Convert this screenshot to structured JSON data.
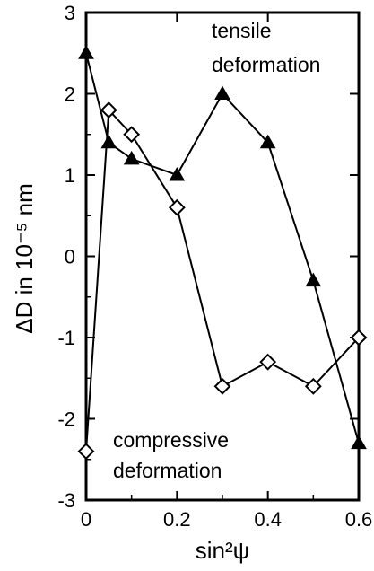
{
  "chart_data": {
    "type": "line",
    "xlabel": "sin²ψ",
    "ylabel": "ΔD in 10⁻⁵ nm",
    "xlim": [
      0,
      0.6
    ],
    "ylim": [
      -3,
      3
    ],
    "x_ticks": [
      "0",
      "0.2",
      "0.4",
      "0.6"
    ],
    "y_ticks": [
      "3",
      "2",
      "1",
      "0",
      "-1",
      "-2",
      "-3"
    ],
    "grid": false,
    "annotations": {
      "tensile_line1": "tensile",
      "tensile_line2": "deformation",
      "compressive_line1": "compressive",
      "compressive_line2": "deformation"
    },
    "series": [
      {
        "marker": "filled-triangle",
        "color": "#000000",
        "x": [
          0,
          0.05,
          0.1,
          0.2,
          0.3,
          0.4,
          0.5,
          0.6
        ],
        "y": [
          2.5,
          1.4,
          1.2,
          1.0,
          2.0,
          1.4,
          -0.3,
          -2.3
        ]
      },
      {
        "marker": "open-diamond",
        "color": "#000000",
        "x": [
          0,
          0.05,
          0.1,
          0.2,
          0.3,
          0.4,
          0.5,
          0.6
        ],
        "y": [
          -2.4,
          1.8,
          1.5,
          0.6,
          -1.6,
          -1.3,
          -1.6,
          -1.0
        ]
      }
    ]
  }
}
